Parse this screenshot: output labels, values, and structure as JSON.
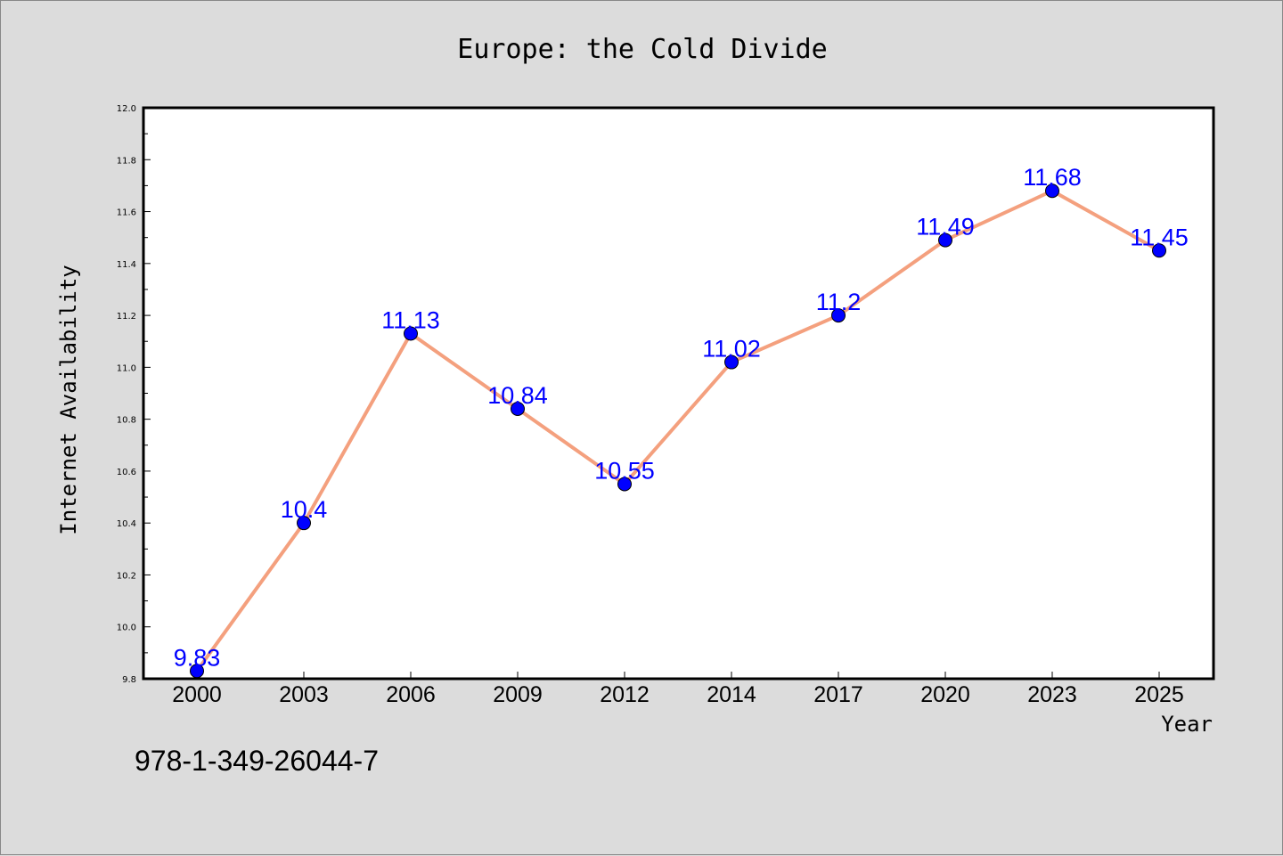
{
  "chart_data": {
    "type": "line",
    "title": "Europe: the Cold Divide",
    "xlabel": "Year",
    "ylabel": "Internet Availability",
    "categories": [
      "2000",
      "2003",
      "2006",
      "2009",
      "2012",
      "2014",
      "2017",
      "2020",
      "2023",
      "2025"
    ],
    "series": [
      {
        "values": [
          9.83,
          10.4,
          11.13,
          10.84,
          10.55,
          11.02,
          11.2,
          11.49,
          11.68,
          11.45
        ],
        "labels": [
          "9.83",
          "10.4",
          "11.13",
          "10.84",
          "10.55",
          "11.02",
          "11.2",
          "11.49",
          "11.68",
          "11.45"
        ]
      }
    ],
    "ylim": [
      9.8,
      12.0
    ],
    "yticks": [
      "9.8",
      "10.0",
      "10.2",
      "10.4",
      "10.6",
      "10.8",
      "11.0",
      "11.2",
      "11.4",
      "11.6",
      "11.8",
      "12.0"
    ],
    "grid": false,
    "line_color": "#f4a07e",
    "marker_color": "#0000ff",
    "label_color": "#0000ff"
  },
  "footer_text": "978-1-349-26044-7"
}
